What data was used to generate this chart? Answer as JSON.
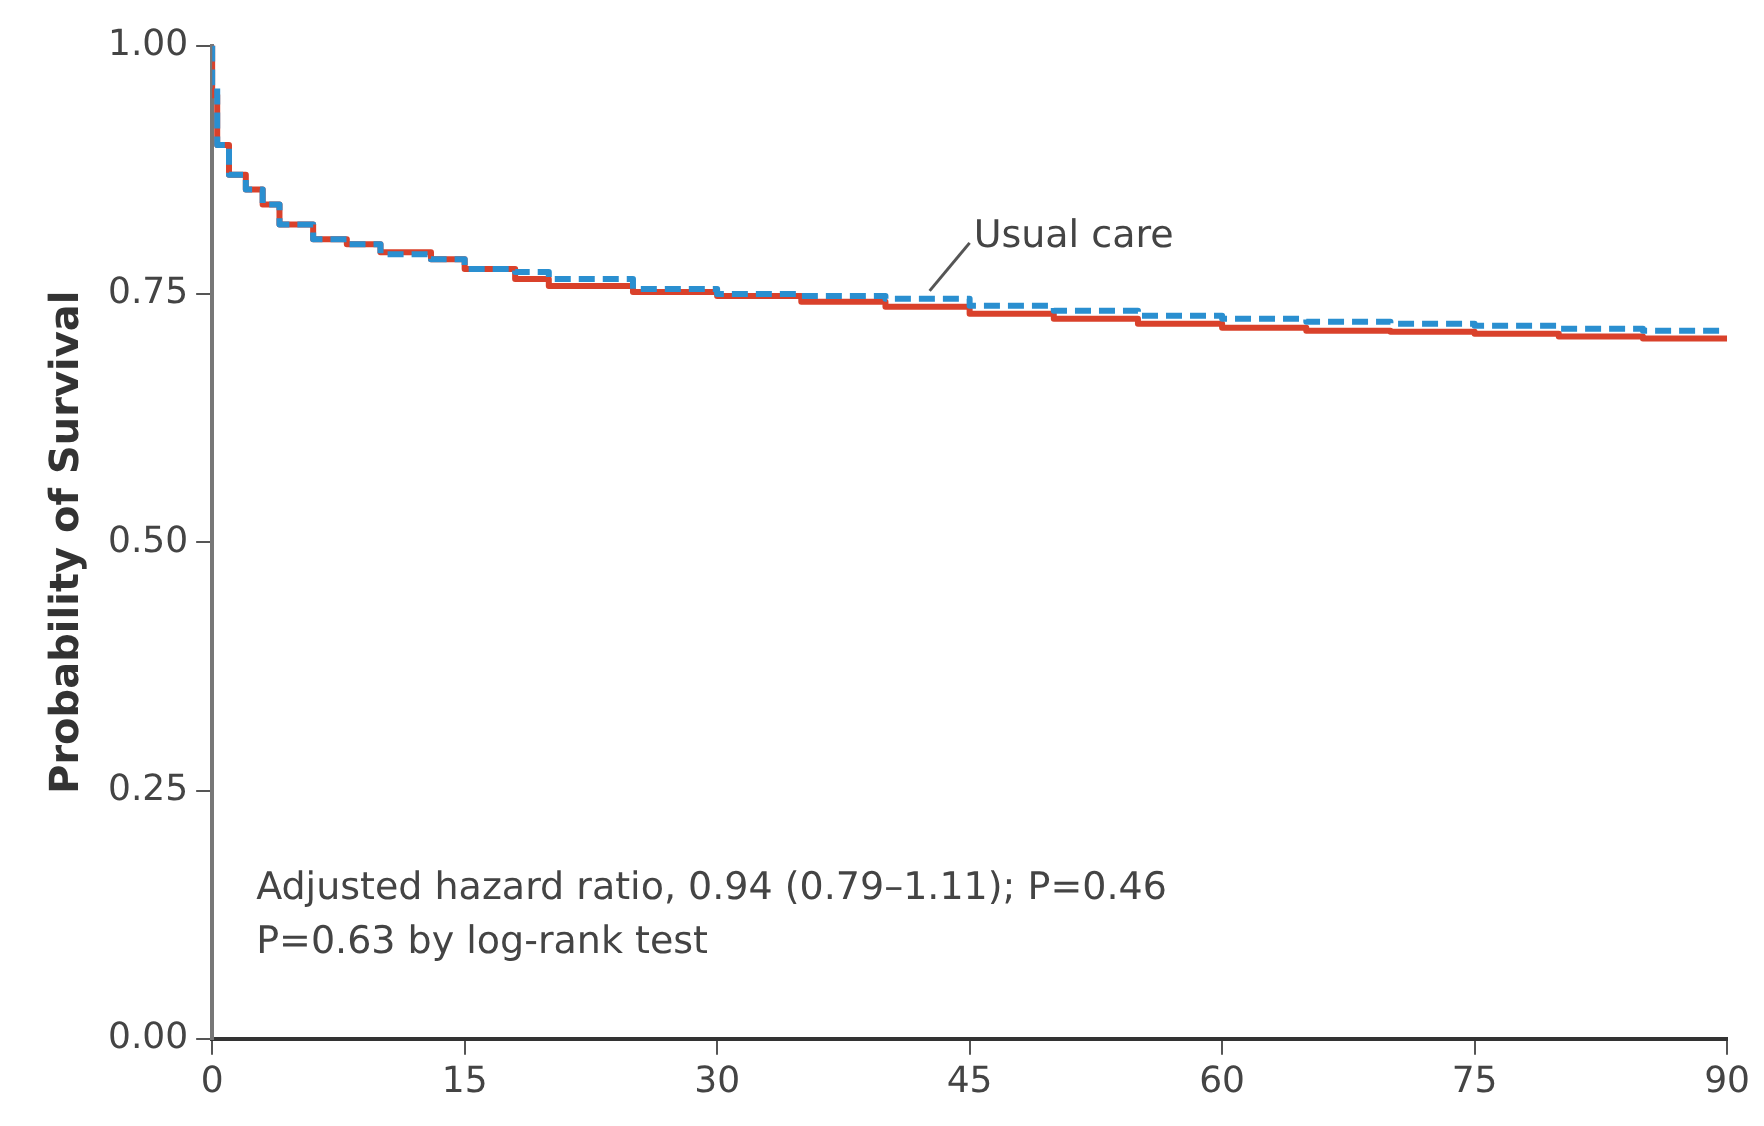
{
  "chart_data": {
    "type": "step",
    "ylabel": "Probability of Survival",
    "x": [
      0,
      0.3,
      1,
      2,
      3,
      4,
      6,
      8,
      10,
      13,
      15,
      18,
      20,
      25,
      30,
      35,
      40,
      45,
      50,
      55,
      60,
      65,
      70,
      75,
      80,
      85,
      90
    ],
    "series": [
      {
        "name": "Usual care",
        "color": "#2a8fd0",
        "line_style": "dashed",
        "values": [
          1.0,
          0.96,
          0.9,
          0.87,
          0.855,
          0.84,
          0.82,
          0.805,
          0.8,
          0.79,
          0.785,
          0.775,
          0.772,
          0.765,
          0.755,
          0.75,
          0.748,
          0.745,
          0.738,
          0.733,
          0.728,
          0.725,
          0.722,
          0.72,
          0.718,
          0.715,
          0.713
        ]
      },
      {
        "color": "#d9412b",
        "line_style": "solid",
        "values": [
          1.0,
          0.95,
          0.9,
          0.87,
          0.855,
          0.84,
          0.82,
          0.805,
          0.8,
          0.792,
          0.785,
          0.775,
          0.765,
          0.758,
          0.752,
          0.748,
          0.742,
          0.737,
          0.73,
          0.725,
          0.72,
          0.716,
          0.713,
          0.712,
          0.71,
          0.707,
          0.705
        ]
      }
    ],
    "xlim": [
      0,
      90
    ],
    "xticks": [
      0,
      15,
      30,
      45,
      60,
      75,
      90
    ],
    "ylim": [
      0,
      1
    ],
    "yticks": [
      {
        "value": 0,
        "label": "0.00"
      },
      {
        "value": 0.25,
        "label": "0.25"
      },
      {
        "value": 0.5,
        "label": "0.50"
      },
      {
        "value": 0.75,
        "label": "0.75"
      },
      {
        "value": 1,
        "label": "1.00"
      }
    ],
    "grid": false,
    "legend": false,
    "marker": "none",
    "annotations": [
      "Adjusted hazard ratio, 0.94 (0.79–1.11); P=0.46",
      "P=0.63 by log-rank test"
    ]
  }
}
